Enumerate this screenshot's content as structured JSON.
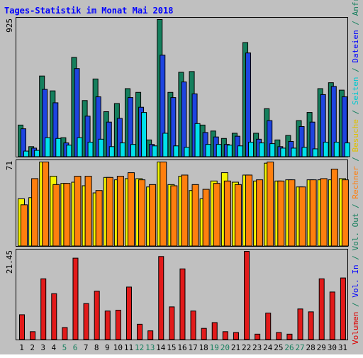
{
  "chart_data": {
    "type": "bar",
    "title": "Tages-Statistik im Monat Mai 2018",
    "days": [
      "1",
      "2",
      "3",
      "4",
      "5",
      "6",
      "7",
      "8",
      "9",
      "10",
      "11",
      "12",
      "13",
      "14",
      "15",
      "16",
      "17",
      "18",
      "19",
      "20",
      "21",
      "22",
      "23",
      "24",
      "25",
      "26",
      "27",
      "28",
      "29",
      "30",
      "31"
    ],
    "weekend_days": [
      "5",
      "6",
      "12",
      "13",
      "19",
      "20",
      "26",
      "27"
    ],
    "panels": [
      {
        "name": "hits",
        "max_label": "925",
        "ymax": 925,
        "series": [
          {
            "name": "Anfragen",
            "color": "#157f5d",
            "values": [
              215,
              70,
              545,
              445,
              130,
              670,
              380,
              525,
              305,
              360,
              460,
              435,
              115,
              925,
              435,
              570,
              575,
              215,
              175,
              125,
              160,
              770,
              160,
              325,
              115,
              145,
              245,
              300,
              460,
              500,
              450
            ]
          },
          {
            "name": "Dateien",
            "color": "#1e44e0",
            "values": [
              190,
              60,
              455,
              365,
              95,
              595,
              275,
              405,
              235,
              260,
              400,
              335,
              85,
              685,
              400,
              505,
              425,
              165,
              135,
              85,
              140,
              700,
              120,
              245,
              70,
              105,
              205,
              235,
              420,
              475,
              405
            ]
          },
          {
            "name": "Seiten",
            "color": "#00e1ea",
            "values": [
              40,
              45,
              130,
              125,
              80,
              130,
              100,
              120,
              70,
              95,
              85,
              300,
              75,
              160,
              75,
              65,
              225,
              85,
              85,
              80,
              75,
              100,
              95,
              90,
              60,
              60,
              65,
              55,
              100,
              100,
              95
            ]
          }
        ]
      },
      {
        "name": "visits",
        "max_label": "71",
        "ymax": 71,
        "series": [
          {
            "name": "Besuche",
            "color": "#f4f400",
            "values": [
              40,
              41,
              71,
              59,
              53,
              54,
              51,
              45,
              58,
              56,
              57,
              57,
              50,
              71,
              52,
              59,
              47,
              40,
              55,
              62,
              54,
              60,
              55,
              70,
              55,
              56,
              50,
              56,
              56,
              56,
              57
            ]
          },
          {
            "name": "Rechner",
            "color": "#ff7f0e",
            "values": [
              35,
              57,
              71,
              52,
              53,
              59,
              59,
              47,
              58,
              59,
              62,
              56,
              52,
              71,
              51,
              60,
              52,
              48,
              53,
              55,
              52,
              60,
              56,
              71,
              55,
              56,
              50,
              56,
              57,
              65,
              56
            ]
          }
        ]
      },
      {
        "name": "volume",
        "max_label": "21.45",
        "ymax": 21.45,
        "series": [
          {
            "name": "Volumen",
            "color": "#e21a1a",
            "values": [
              6.1,
              2.0,
              14.8,
              11.2,
              3.0,
              19.8,
              8.8,
              11.8,
              7.0,
              7.2,
              12.8,
              3.8,
              2.2,
              20.2,
              8.0,
              17.2,
              7.0,
              2.8,
              4.2,
              2.0,
              1.8,
              21.45,
              1.4,
              6.5,
              1.8,
              1.4,
              7.5,
              6.8,
              14.8,
              11.6,
              15.0
            ]
          }
        ]
      }
    ],
    "right_legend": [
      {
        "text": "Volumen",
        "color": "#dd0000"
      },
      {
        "text": " / ",
        "color": "#157f5d"
      },
      {
        "text": "Vol. In",
        "color": "#0000ff"
      },
      {
        "text": " / ",
        "color": "#157f5d"
      },
      {
        "text": "Vol. Out",
        "color": "#157f5d"
      },
      {
        "text": " / ",
        "color": "#157f5d"
      },
      {
        "text": "Rechner",
        "color": "#ff7f0e"
      },
      {
        "text": " / ",
        "color": "#157f5d"
      },
      {
        "text": "Besuche",
        "color": "#e0c000"
      },
      {
        "text": " / ",
        "color": "#157f5d"
      },
      {
        "text": "Seiten",
        "color": "#00c8d0"
      },
      {
        "text": " / ",
        "color": "#157f5d"
      },
      {
        "text": "Dateien",
        "color": "#0000ff"
      },
      {
        "text": " / ",
        "color": "#157f5d"
      },
      {
        "text": "Anfragen",
        "color": "#157f5d"
      }
    ],
    "colors": {
      "title": "#0000ff",
      "background": "#c0c0c0",
      "weekday_label": "#000000",
      "weekend_label": "#157f5d"
    }
  }
}
